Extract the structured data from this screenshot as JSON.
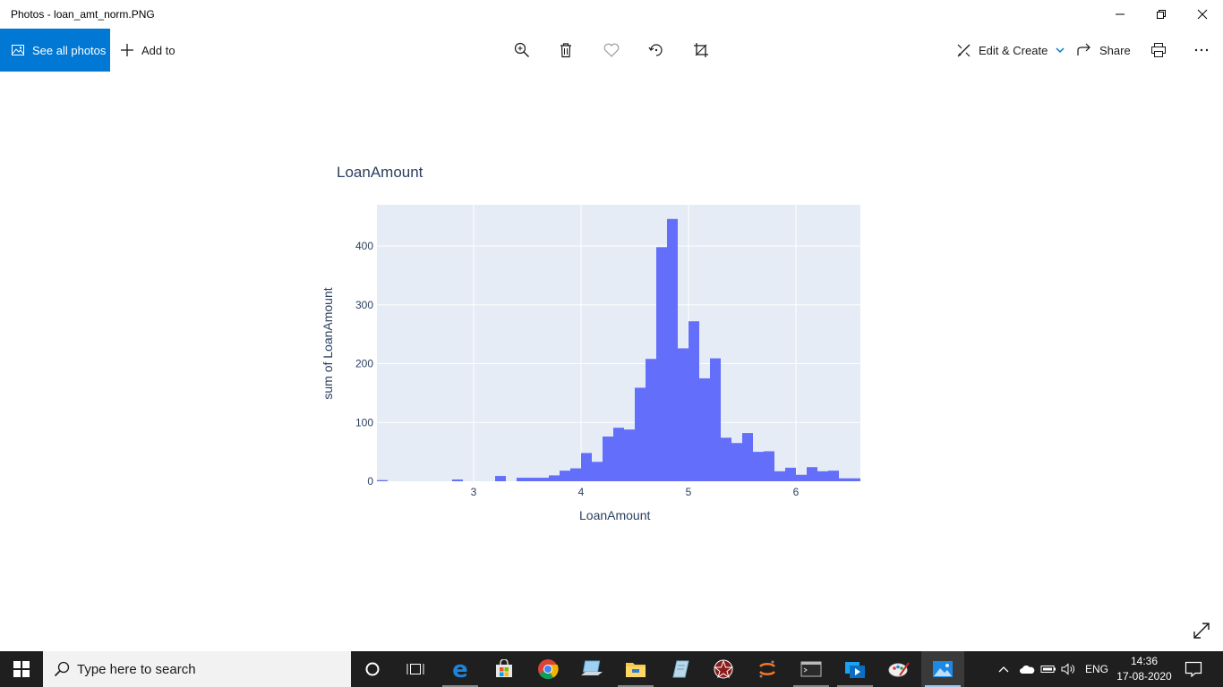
{
  "window": {
    "title": "Photos - loan_amt_norm.PNG"
  },
  "toolbar": {
    "see_all_photos": "See all photos",
    "add_to": "Add to",
    "edit_create": "Edit & Create",
    "share": "Share",
    "icons": [
      "zoom-in-icon",
      "delete-icon",
      "favorite-icon",
      "rotate-icon",
      "crop-icon",
      "print-icon",
      "more-icon"
    ]
  },
  "chart_data": {
    "type": "bar",
    "title": "LoanAmount",
    "xlabel": "LoanAmount",
    "ylabel": "sum of LoanAmount",
    "xlim": [
      2.1,
      6.6
    ],
    "ylim": [
      0,
      470
    ],
    "xticks": [
      3,
      4,
      5,
      6
    ],
    "yticks": [
      0,
      100,
      200,
      300,
      400
    ],
    "grid": true,
    "bin_width": 0.1,
    "bins": [
      {
        "x": 2.15,
        "y": 2
      },
      {
        "x": 2.85,
        "y": 3
      },
      {
        "x": 3.25,
        "y": 9
      },
      {
        "x": 3.45,
        "y": 6
      },
      {
        "x": 3.55,
        "y": 6
      },
      {
        "x": 3.65,
        "y": 6
      },
      {
        "x": 3.75,
        "y": 10
      },
      {
        "x": 3.85,
        "y": 18
      },
      {
        "x": 3.95,
        "y": 22
      },
      {
        "x": 4.05,
        "y": 48
      },
      {
        "x": 4.15,
        "y": 33
      },
      {
        "x": 4.25,
        "y": 76
      },
      {
        "x": 4.35,
        "y": 91
      },
      {
        "x": 4.45,
        "y": 88
      },
      {
        "x": 4.55,
        "y": 159
      },
      {
        "x": 4.65,
        "y": 208
      },
      {
        "x": 4.75,
        "y": 398
      },
      {
        "x": 4.85,
        "y": 446
      },
      {
        "x": 4.95,
        "y": 226
      },
      {
        "x": 5.05,
        "y": 272
      },
      {
        "x": 5.15,
        "y": 175
      },
      {
        "x": 5.25,
        "y": 209
      },
      {
        "x": 5.35,
        "y": 74
      },
      {
        "x": 5.45,
        "y": 65
      },
      {
        "x": 5.55,
        "y": 82
      },
      {
        "x": 5.65,
        "y": 50
      },
      {
        "x": 5.75,
        "y": 51
      },
      {
        "x": 5.85,
        "y": 17
      },
      {
        "x": 5.95,
        "y": 23
      },
      {
        "x": 6.05,
        "y": 11
      },
      {
        "x": 6.15,
        "y": 24
      },
      {
        "x": 6.25,
        "y": 17
      },
      {
        "x": 6.35,
        "y": 18
      },
      {
        "x": 6.45,
        "y": 5
      },
      {
        "x": 6.55,
        "y": 5
      }
    ],
    "colors": {
      "bar": "#636efa",
      "plot_bg": "#e5ecf6",
      "grid": "#ffffff",
      "text": "#2a3f5f"
    }
  },
  "taskbar": {
    "search_placeholder": "Type here to search",
    "apps": [
      "cortana-icon",
      "task-view-icon",
      "edge-icon",
      "store-icon",
      "chrome-icon",
      "laptop-icon",
      "file-explorer-icon",
      "notepad-icon",
      "app-star-icon",
      "jupyter-icon",
      "terminal-icon",
      "media-player-icon",
      "paint-icon",
      "photos-icon"
    ],
    "language": "ENG",
    "time": "14:36",
    "date": "17-08-2020"
  }
}
